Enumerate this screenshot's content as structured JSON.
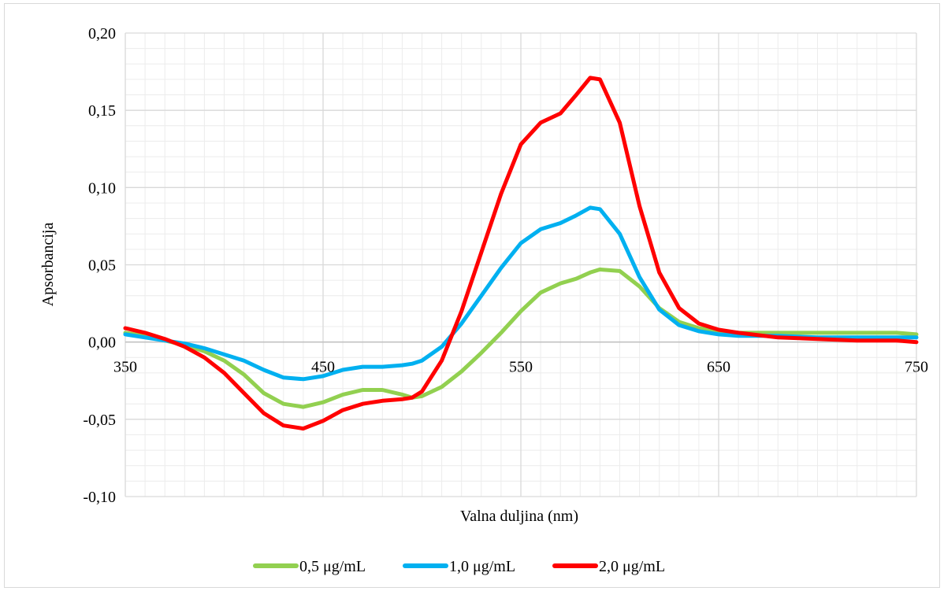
{
  "chart_data": {
    "type": "line",
    "title": "",
    "xlabel": "Valna duljina (nm)",
    "ylabel": "Apsorbancija",
    "xlim": [
      350,
      750
    ],
    "ylim": [
      -0.1,
      0.2
    ],
    "xticks": [
      350,
      450,
      550,
      650,
      750
    ],
    "xtick_labels": [
      "350",
      "450",
      "550",
      "650",
      "750"
    ],
    "yticks": [
      -0.1,
      -0.05,
      0.0,
      0.05,
      0.1,
      0.15,
      0.2
    ],
    "ytick_labels": [
      "-0,10",
      "-0,05",
      "0,00",
      "0,05",
      "0,10",
      "0,15",
      "0,20"
    ],
    "grid": "major and minor",
    "legend_position": "bottom",
    "x": [
      350,
      360,
      370,
      380,
      390,
      400,
      410,
      420,
      430,
      440,
      450,
      460,
      470,
      480,
      490,
      495,
      500,
      510,
      520,
      530,
      540,
      550,
      560,
      570,
      578,
      585,
      590,
      600,
      610,
      620,
      630,
      640,
      650,
      660,
      680,
      700,
      720,
      740,
      750
    ],
    "series": [
      {
        "name": "0,5 μg/mL",
        "color": "#92d050",
        "values": [
          0.006,
          0.004,
          0.001,
          -0.002,
          -0.006,
          -0.012,
          -0.021,
          -0.033,
          -0.04,
          -0.042,
          -0.039,
          -0.034,
          -0.031,
          -0.031,
          -0.034,
          -0.036,
          -0.035,
          -0.029,
          -0.019,
          -0.007,
          0.006,
          0.02,
          0.032,
          0.038,
          0.041,
          0.045,
          0.047,
          0.046,
          0.036,
          0.022,
          0.013,
          0.009,
          0.007,
          0.006,
          0.006,
          0.006,
          0.006,
          0.006,
          0.005
        ]
      },
      {
        "name": "1,0 μg/mL",
        "color": "#00b0f0",
        "values": [
          0.005,
          0.003,
          0.001,
          -0.001,
          -0.004,
          -0.008,
          -0.012,
          -0.018,
          -0.023,
          -0.024,
          -0.022,
          -0.018,
          -0.016,
          -0.016,
          -0.015,
          -0.014,
          -0.012,
          -0.003,
          0.012,
          0.03,
          0.048,
          0.064,
          0.073,
          0.077,
          0.082,
          0.087,
          0.086,
          0.07,
          0.042,
          0.021,
          0.011,
          0.007,
          0.005,
          0.004,
          0.004,
          0.003,
          0.003,
          0.003,
          0.003
        ]
      },
      {
        "name": "2,0 μg/mL",
        "color": "#ff0000",
        "values": [
          0.009,
          0.006,
          0.002,
          -0.003,
          -0.01,
          -0.02,
          -0.033,
          -0.046,
          -0.054,
          -0.056,
          -0.051,
          -0.044,
          -0.04,
          -0.038,
          -0.037,
          -0.036,
          -0.032,
          -0.012,
          0.02,
          0.058,
          0.096,
          0.128,
          0.142,
          0.148,
          0.16,
          0.171,
          0.17,
          0.142,
          0.088,
          0.045,
          0.022,
          0.012,
          0.008,
          0.006,
          0.003,
          0.002,
          0.001,
          0.001,
          0.0
        ]
      }
    ]
  }
}
